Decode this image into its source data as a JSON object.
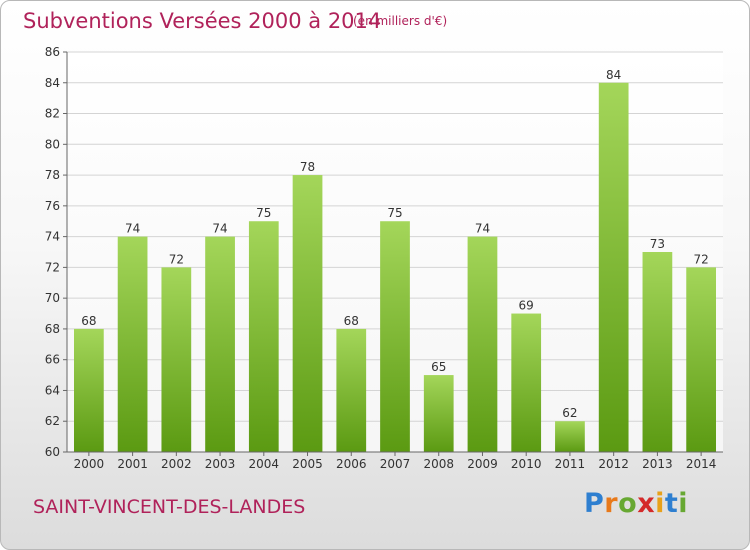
{
  "title": "Subventions Versées 2000 à 2014",
  "unit": "(en milliers d'€)",
  "commune": "SAINT-VINCENT-DES-LANDES",
  "logo": {
    "letters": [
      "P",
      "r",
      "o",
      "x",
      "i",
      "t",
      "i"
    ],
    "colors": [
      "#2e7fd0",
      "#e8791a",
      "#67a832",
      "#d42a2a",
      "#e8a11a",
      "#2e7fd0",
      "#67a832"
    ]
  },
  "colors": {
    "bar_top": "#a4d65a",
    "bar_bottom": "#5b9a12",
    "accent": "#b0225a"
  },
  "chart_data": {
    "type": "bar",
    "categories": [
      "2000",
      "2001",
      "2002",
      "2003",
      "2004",
      "2005",
      "2006",
      "2007",
      "2008",
      "2009",
      "2010",
      "2011",
      "2012",
      "2013",
      "2014"
    ],
    "values": [
      68,
      74,
      72,
      74,
      75,
      78,
      68,
      75,
      65,
      74,
      69,
      62,
      84,
      73,
      72
    ],
    "yticks": [
      60,
      62,
      64,
      66,
      68,
      70,
      72,
      74,
      76,
      78,
      80,
      82,
      84,
      86
    ],
    "ylim": [
      60,
      86
    ],
    "grid": true
  }
}
